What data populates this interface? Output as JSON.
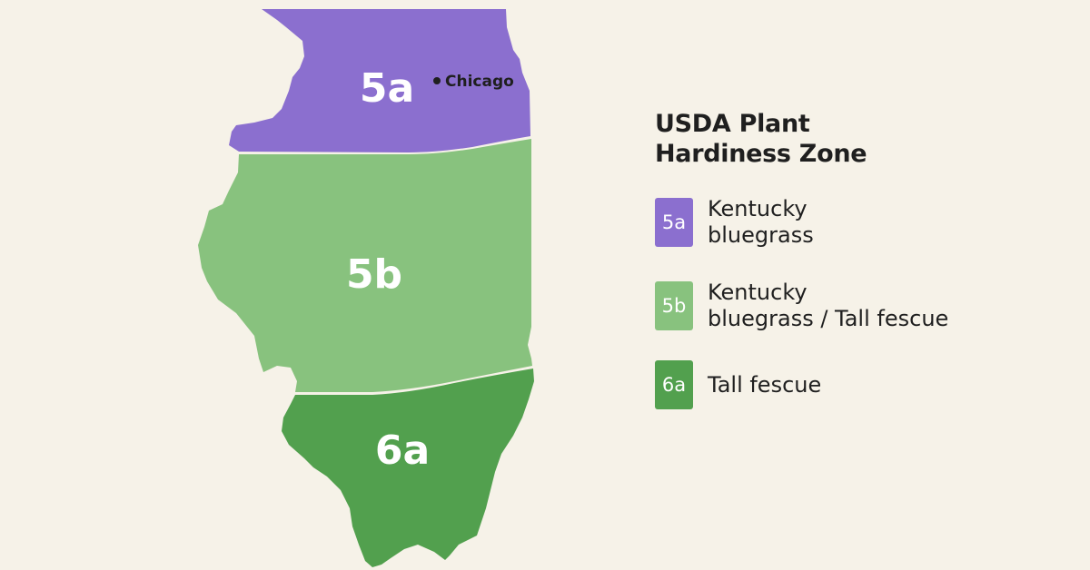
{
  "map": {
    "zones": [
      {
        "id": "5a",
        "label": "5a",
        "color": "#8b6fcf"
      },
      {
        "id": "5b",
        "label": "5b",
        "color": "#88c27e"
      },
      {
        "id": "6a",
        "label": "6a",
        "color": "#52a04e"
      }
    ],
    "city": {
      "name": "Chicago"
    }
  },
  "legend": {
    "title_line1": "USDA Plant",
    "title_line2": "Hardiness Zone",
    "items": [
      {
        "zone": "5a",
        "line1": "Kentucky",
        "line2": "bluegrass",
        "color": "#8b6fcf"
      },
      {
        "zone": "5b",
        "line1": "Kentucky",
        "line2": "bluegrass / Tall fescue",
        "color": "#88c27e"
      },
      {
        "zone": "6a",
        "line1": "Tall fescue",
        "line2": "",
        "color": "#52a04e"
      }
    ]
  }
}
